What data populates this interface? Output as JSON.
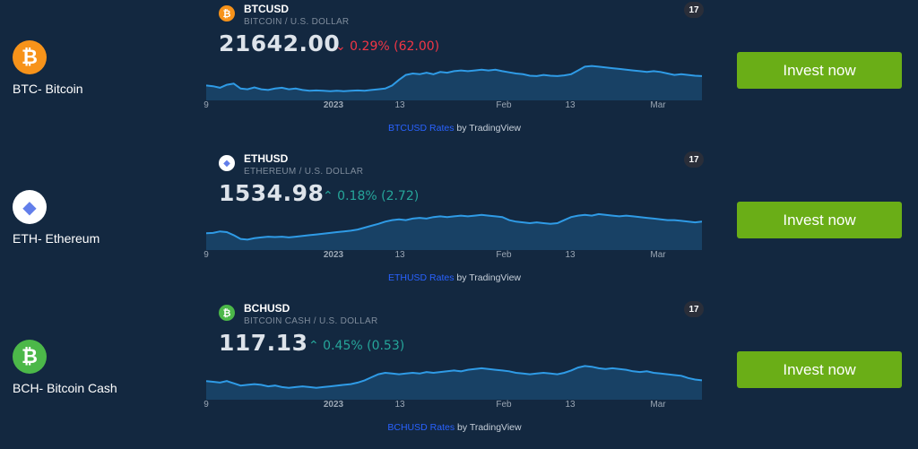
{
  "colors": {
    "background": "#132840",
    "button": "#6aae17",
    "up": "#26a69a",
    "down": "#f23645",
    "line": "#2f9be6"
  },
  "x_tick_labels": [
    "9",
    "2023",
    "13",
    "Feb",
    "13",
    "Mar"
  ],
  "attribution_suffix": "by TradingView",
  "assets": [
    {
      "coin_label": "BTC- Bitcoin",
      "icon": "bitcoin-icon",
      "icon_glyph": "₿",
      "icon_color": "#f7931a",
      "symbol": "BTCUSD",
      "description": "BITCOIN / U.S. DOLLAR",
      "price": "21642.00",
      "change": "⌄ 0.29% (62.00)",
      "direction": "down",
      "rates_link": "BTCUSD Rates",
      "button": "Invest now",
      "trend": [
        0.3,
        0.28,
        0.24,
        0.32,
        0.35,
        0.22,
        0.2,
        0.25,
        0.2,
        0.18,
        0.22,
        0.24,
        0.2,
        0.22,
        0.18,
        0.16,
        0.17,
        0.16,
        0.15,
        0.16,
        0.15,
        0.16,
        0.17,
        0.16,
        0.18,
        0.2,
        0.22,
        0.3,
        0.45,
        0.58,
        0.62,
        0.6,
        0.64,
        0.6,
        0.66,
        0.64,
        0.68,
        0.7,
        0.68,
        0.7,
        0.72,
        0.7,
        0.72,
        0.68,
        0.65,
        0.62,
        0.6,
        0.56,
        0.55,
        0.58,
        0.56,
        0.55,
        0.57,
        0.6,
        0.7,
        0.8,
        0.82,
        0.8,
        0.78,
        0.76,
        0.74,
        0.72,
        0.7,
        0.68,
        0.66,
        0.68,
        0.66,
        0.62,
        0.58,
        0.6,
        0.58,
        0.56,
        0.55
      ]
    },
    {
      "coin_label": "ETH- Ethereum",
      "icon": "ethereum-icon",
      "icon_glyph": "◆",
      "icon_color": "#ffffff",
      "symbol": "ETHUSD",
      "description": "ETHEREUM / U.S. DOLLAR",
      "price": "1534.98",
      "change": "⌃ 0.18% (2.72)",
      "direction": "up",
      "rates_link": "ETHUSD Rates",
      "button": "Invest now",
      "trend": [
        0.35,
        0.36,
        0.4,
        0.38,
        0.3,
        0.2,
        0.18,
        0.22,
        0.24,
        0.26,
        0.25,
        0.26,
        0.24,
        0.26,
        0.28,
        0.3,
        0.32,
        0.34,
        0.36,
        0.38,
        0.4,
        0.42,
        0.45,
        0.5,
        0.55,
        0.6,
        0.66,
        0.7,
        0.72,
        0.7,
        0.74,
        0.76,
        0.74,
        0.78,
        0.8,
        0.78,
        0.8,
        0.82,
        0.8,
        0.82,
        0.84,
        0.82,
        0.8,
        0.78,
        0.7,
        0.66,
        0.64,
        0.62,
        0.64,
        0.62,
        0.6,
        0.62,
        0.7,
        0.78,
        0.82,
        0.84,
        0.82,
        0.86,
        0.84,
        0.82,
        0.8,
        0.82,
        0.8,
        0.78,
        0.76,
        0.74,
        0.72,
        0.7,
        0.7,
        0.68,
        0.66,
        0.64,
        0.66
      ]
    },
    {
      "coin_label": "BCH- Bitcoin Cash",
      "icon": "bitcoin-cash-icon",
      "icon_glyph": "₿",
      "icon_color": "#4cb849",
      "symbol": "BCHUSD",
      "description": "BITCOIN CASH / U.S. DOLLAR",
      "price": "117.13",
      "change": "⌃ 0.45% (0.53)",
      "direction": "up",
      "rates_link": "BCHUSD Rates",
      "button": "Invest now",
      "trend": [
        0.4,
        0.38,
        0.36,
        0.4,
        0.34,
        0.28,
        0.3,
        0.32,
        0.3,
        0.26,
        0.28,
        0.24,
        0.22,
        0.24,
        0.26,
        0.24,
        0.22,
        0.24,
        0.26,
        0.28,
        0.3,
        0.32,
        0.36,
        0.42,
        0.5,
        0.58,
        0.62,
        0.6,
        0.58,
        0.6,
        0.62,
        0.6,
        0.64,
        0.62,
        0.64,
        0.66,
        0.68,
        0.66,
        0.7,
        0.72,
        0.74,
        0.72,
        0.7,
        0.68,
        0.66,
        0.62,
        0.6,
        0.58,
        0.6,
        0.62,
        0.6,
        0.58,
        0.62,
        0.68,
        0.76,
        0.8,
        0.78,
        0.74,
        0.72,
        0.74,
        0.72,
        0.7,
        0.66,
        0.64,
        0.66,
        0.62,
        0.6,
        0.58,
        0.56,
        0.54,
        0.48,
        0.44,
        0.42
      ]
    }
  ]
}
